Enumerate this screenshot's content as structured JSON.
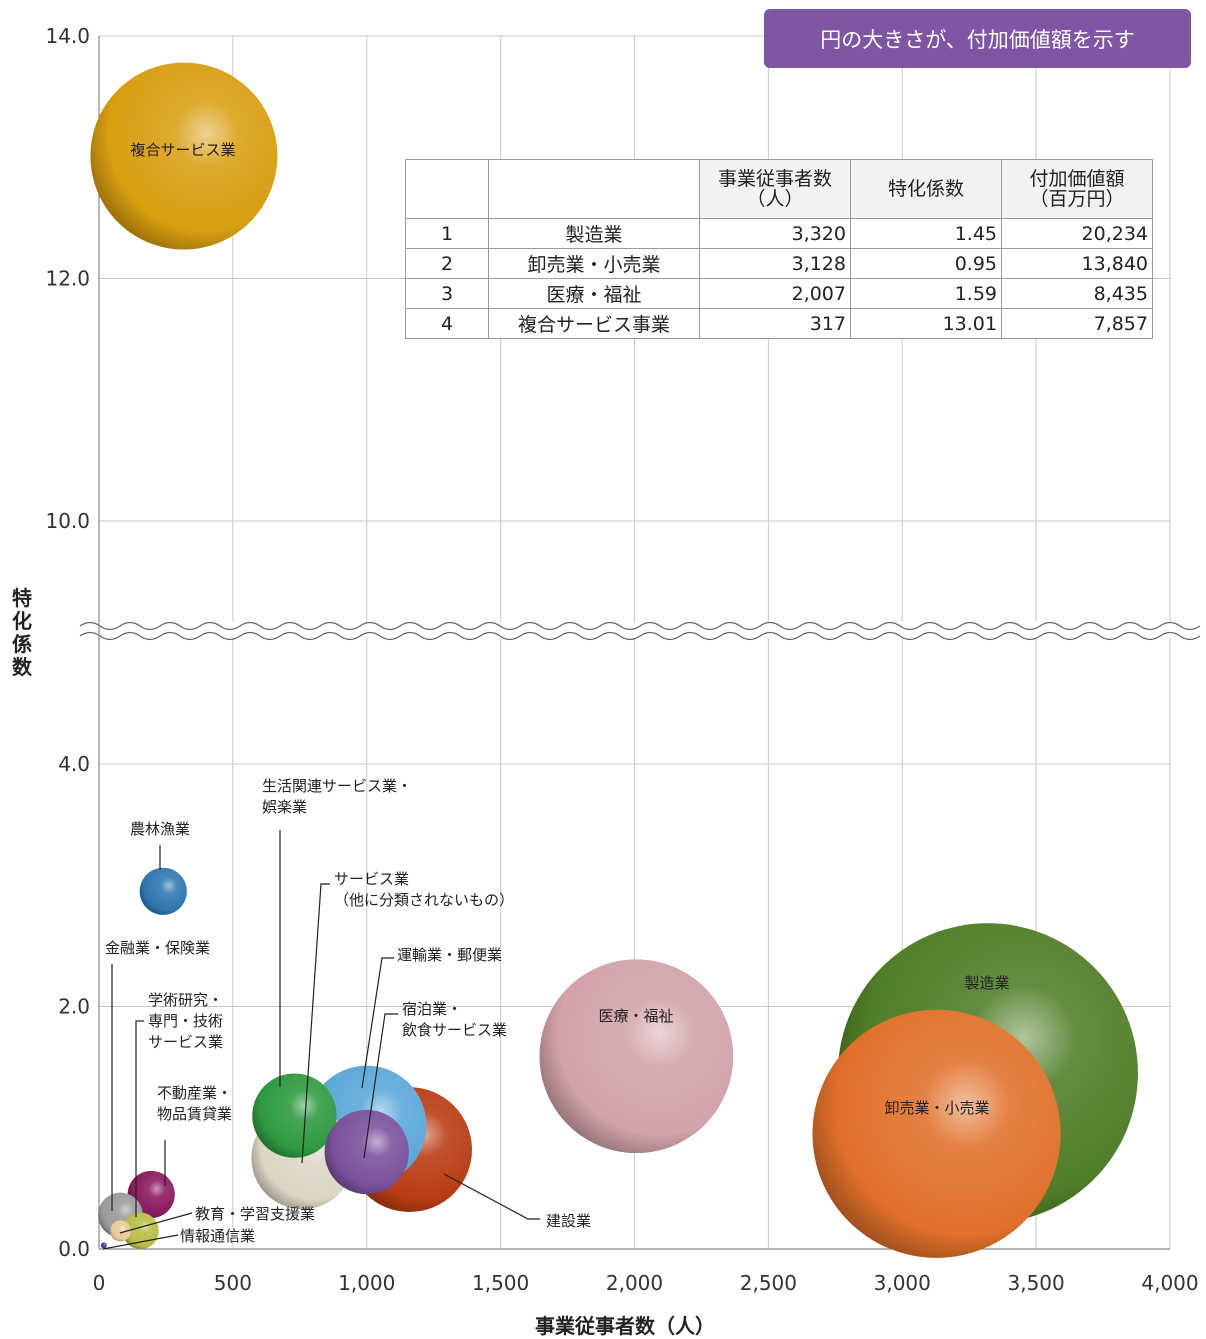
{
  "note": "円の大きさが、付加価値額を示す",
  "table": {
    "headers": [
      "",
      "",
      "事業従事者数\n（人）",
      "特化係数",
      "付加価値額\n（百万円）"
    ],
    "rows": [
      [
        "1",
        "製造業",
        "3,320",
        "1.45",
        "20,234"
      ],
      [
        "2",
        "卸売業・小売業",
        "3,128",
        "0.95",
        "13,840"
      ],
      [
        "3",
        "医療・福祉",
        "2,007",
        "1.59",
        "8,435"
      ],
      [
        "4",
        "複合サービス事業",
        "317",
        "13.01",
        "7,857"
      ]
    ]
  },
  "chart_data": {
    "type": "bubble",
    "xlabel": "事業従事者数（人）",
    "ylabel": "特化係数",
    "xlim": [
      0,
      4000
    ],
    "x_ticks": [
      "0",
      "500",
      "1,000",
      "1,500",
      "2,000",
      "2,500",
      "3,000",
      "3,500",
      "4,000"
    ],
    "y_ticks_lower": [
      "0.0",
      "2.0",
      "4.0"
    ],
    "y_ticks_upper": [
      "10.0",
      "12.0",
      "14.0"
    ],
    "y_axis_break": "between 4.0 and 10.0",
    "grid": true,
    "bubble_size": "付加価値額（百万円）",
    "points": [
      {
        "name": "製造業",
        "x": 3320,
        "y": 1.45,
        "size": 20234,
        "color": "#4f7d27"
      },
      {
        "name": "卸売業・小売業",
        "x": 3128,
        "y": 0.95,
        "size": 13840,
        "color": "#e0702a"
      },
      {
        "name": "医療・福祉",
        "x": 2007,
        "y": 1.59,
        "size": 8435,
        "color": "#d2a3a9"
      },
      {
        "name": "複合サービス業",
        "x": 317,
        "y": 13.01,
        "size": 7857,
        "color": "#d89e10"
      },
      {
        "name": "建設業",
        "x": 1160,
        "y": 0.82,
        "size": 3500,
        "color": "#b83c12"
      },
      {
        "name": "運輸業・郵便業",
        "x": 1000,
        "y": 1.02,
        "size": 3200,
        "color": "#5aa7d8"
      },
      {
        "name": "生活関連サービス業・\n娯楽業",
        "x": 730,
        "y": 1.1,
        "size": 1600,
        "color": "#2e9a3f"
      },
      {
        "name": "宿泊業・\n飲食サービス業",
        "x": 1000,
        "y": 0.8,
        "size": 1600,
        "color": "#7a519a"
      },
      {
        "name": "サービス業\n（他に分類されないもの）",
        "x": 760,
        "y": 0.75,
        "size": 2350,
        "color": "#dcd6c4"
      },
      {
        "name": "農林漁業",
        "x": 240,
        "y": 2.95,
        "size": 500,
        "color": "#2f77ae"
      },
      {
        "name": "金融業・保険業",
        "x": 80,
        "y": 0.28,
        "size": 450,
        "color": "#9a9a9a"
      },
      {
        "name": "不動産業・\n物品賃貸業",
        "x": 195,
        "y": 0.45,
        "size": 500,
        "color": "#8b1a5e"
      },
      {
        "name": "学術研究・\n専門・技術\nサービス業",
        "x": 155,
        "y": 0.15,
        "size": 300,
        "color": "#b8bd45"
      },
      {
        "name": "教育・学習支援業",
        "x": 80,
        "y": 0.15,
        "size": 100,
        "color": "#e8c99a"
      },
      {
        "name": "情報通信業",
        "x": 18,
        "y": 0.03,
        "size": 2,
        "color": "#3b3b8f"
      }
    ]
  }
}
